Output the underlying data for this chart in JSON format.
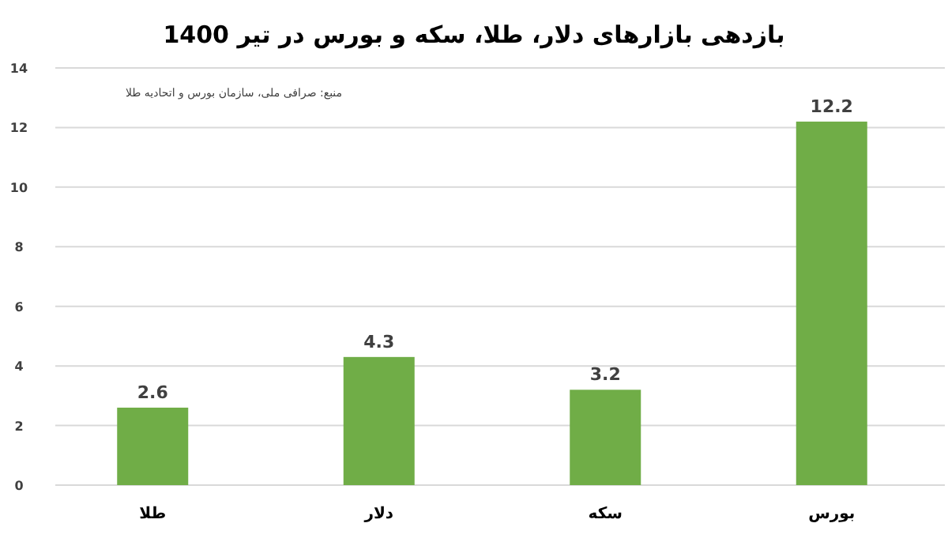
{
  "chart_data": {
    "type": "bar",
    "title": "بازدهی بازارهای دلار، طلا، سکه و بورس در تیر 1400",
    "annotations": [
      "منبع: صرافی ملی، سازمان بورس و اتحادیه طلا"
    ],
    "categories": [
      "طلا",
      "دلار",
      "سکه",
      "بورس"
    ],
    "values": [
      2.6,
      4.3,
      3.2,
      12.2
    ],
    "color": "#70ad47",
    "ylim": [
      0,
      14
    ],
    "yticks": [
      0,
      2,
      4,
      6,
      8,
      10,
      12,
      14
    ],
    "grid": "y",
    "data_labels": true
  }
}
